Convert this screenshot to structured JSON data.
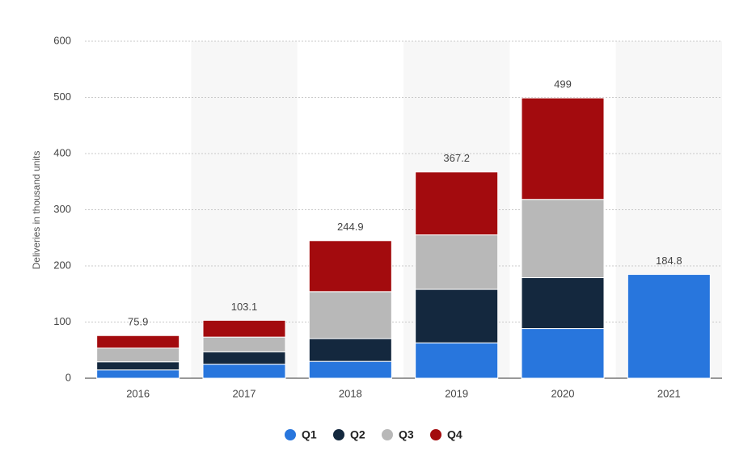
{
  "chart_data": {
    "type": "stacked_bar",
    "y_label": "Deliveries in thousand units",
    "categories": [
      "2016",
      "2017",
      "2018",
      "2019",
      "2020",
      "2021"
    ],
    "series": [
      {
        "name": "Q1",
        "color": "#2876dd",
        "values": [
          14.8,
          25,
          30,
          63,
          88.4,
          184.8
        ]
      },
      {
        "name": "Q2",
        "color": "#14283e",
        "values": [
          14.4,
          22,
          40.7,
          95.2,
          90.7,
          null
        ]
      },
      {
        "name": "Q3",
        "color": "#b8b8b8",
        "values": [
          24.5,
          26.2,
          83.5,
          97,
          139.3,
          null
        ]
      },
      {
        "name": "Q4",
        "color": "#a30b0e",
        "values": [
          22.2,
          29.9,
          90.7,
          112,
          180.6,
          null
        ]
      }
    ],
    "totals": [
      75.9,
      103.1,
      244.9,
      367.2,
      499,
      184.8
    ],
    "ylim": [
      0,
      600
    ],
    "yticks": [
      0,
      100,
      200,
      300,
      400,
      500,
      600
    ],
    "grid": true
  }
}
